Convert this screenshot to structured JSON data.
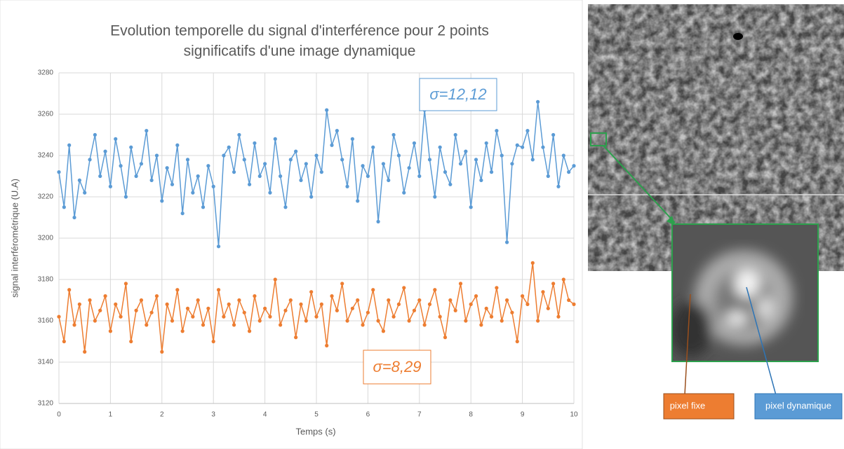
{
  "chart_data": {
    "type": "line",
    "title": [
      "Evolution temporelle du signal d'interférence pour 2 points",
      "significatifs d'une image dynamique"
    ],
    "xlabel": "Temps (s)",
    "ylabel": "signal interférométrique (U.A)",
    "xlim": [
      0,
      10
    ],
    "xticks": [
      0,
      1,
      2,
      3,
      4,
      5,
      6,
      7,
      8,
      9,
      10
    ],
    "ylim": [
      3120,
      3280
    ],
    "yticks": [
      3120,
      3140,
      3160,
      3180,
      3200,
      3220,
      3240,
      3260,
      3280
    ],
    "grid": true,
    "x": [
      0,
      0.1,
      0.2,
      0.3,
      0.4,
      0.5,
      0.6,
      0.7,
      0.8,
      0.9,
      1,
      1.1,
      1.2,
      1.3,
      1.4,
      1.5,
      1.6,
      1.7,
      1.8,
      1.9,
      2,
      2.1,
      2.2,
      2.3,
      2.4,
      2.5,
      2.6,
      2.7,
      2.8,
      2.9,
      3,
      3.1,
      3.2,
      3.3,
      3.4,
      3.5,
      3.6,
      3.7,
      3.8,
      3.9,
      4,
      4.1,
      4.2,
      4.3,
      4.4,
      4.5,
      4.6,
      4.7,
      4.8,
      4.9,
      5,
      5.1,
      5.2,
      5.3,
      5.4,
      5.5,
      5.6,
      5.7,
      5.8,
      5.9,
      6,
      6.1,
      6.2,
      6.3,
      6.4,
      6.5,
      6.6,
      6.7,
      6.8,
      6.9,
      7,
      7.1,
      7.2,
      7.3,
      7.4,
      7.5,
      7.6,
      7.7,
      7.8,
      7.9,
      8,
      8.1,
      8.2,
      8.3,
      8.4,
      8.5,
      8.6,
      8.7,
      8.8,
      8.9,
      9,
      9.1,
      9.2,
      9.3,
      9.4,
      9.5,
      9.6,
      9.7,
      9.8,
      9.9,
      10
    ],
    "series": [
      {
        "color": "#5b9bd5",
        "values": [
          3232,
          3215,
          3245,
          3210,
          3228,
          3222,
          3238,
          3250,
          3230,
          3242,
          3225,
          3248,
          3235,
          3220,
          3244,
          3230,
          3236,
          3252,
          3228,
          3240,
          3218,
          3234,
          3226,
          3245,
          3212,
          3238,
          3222,
          3230,
          3215,
          3235,
          3225,
          3196,
          3240,
          3244,
          3232,
          3250,
          3238,
          3226,
          3246,
          3230,
          3236,
          3222,
          3248,
          3230,
          3215,
          3238,
          3242,
          3228,
          3236,
          3220,
          3240,
          3232,
          3262,
          3245,
          3252,
          3238,
          3225,
          3248,
          3218,
          3235,
          3230,
          3244,
          3208,
          3236,
          3228,
          3250,
          3240,
          3222,
          3234,
          3246,
          3230,
          3262,
          3238,
          3220,
          3244,
          3232,
          3226,
          3250,
          3236,
          3242,
          3215,
          3238,
          3228,
          3246,
          3232,
          3252,
          3240,
          3198,
          3236,
          3245,
          3244,
          3252,
          3238,
          3266,
          3244,
          3230,
          3250,
          3225,
          3240,
          3232,
          3235
        ]
      },
      {
        "color": "#ed7d31",
        "values": [
          3162,
          3150,
          3175,
          3158,
          3168,
          3145,
          3170,
          3160,
          3165,
          3172,
          3155,
          3168,
          3162,
          3178,
          3150,
          3165,
          3170,
          3158,
          3164,
          3172,
          3145,
          3168,
          3160,
          3175,
          3155,
          3166,
          3162,
          3170,
          3158,
          3166,
          3150,
          3175,
          3162,
          3168,
          3158,
          3170,
          3164,
          3155,
          3172,
          3160,
          3166,
          3162,
          3180,
          3158,
          3165,
          3170,
          3152,
          3168,
          3160,
          3174,
          3162,
          3168,
          3148,
          3172,
          3165,
          3178,
          3160,
          3166,
          3170,
          3158,
          3164,
          3175,
          3160,
          3155,
          3170,
          3162,
          3168,
          3176,
          3160,
          3165,
          3170,
          3158,
          3168,
          3175,
          3162,
          3152,
          3170,
          3165,
          3178,
          3160,
          3168,
          3172,
          3158,
          3166,
          3162,
          3176,
          3160,
          3170,
          3164,
          3150,
          3172,
          3168,
          3188,
          3160,
          3174,
          3166,
          3178,
          3162,
          3180,
          3170,
          3168
        ]
      }
    ],
    "annotations": [
      {
        "text": "σ=12,12",
        "color": "#5b9bd5"
      },
      {
        "text": "σ=8,29",
        "color": "#ed7d31"
      }
    ]
  },
  "image": {
    "labels": [
      "pixel fixe",
      "pixel dynamique"
    ]
  }
}
